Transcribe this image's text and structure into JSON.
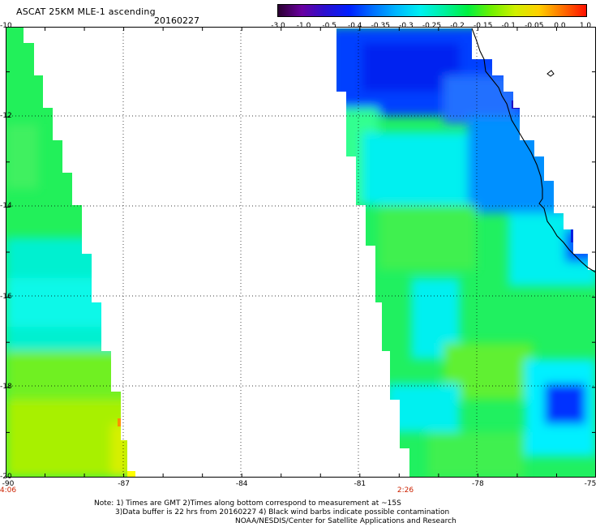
{
  "header": {
    "title": "ASCAT 25KM MLE-1 ascending",
    "date": "20160227"
  },
  "colorbar": {
    "labels": [
      "-3.0",
      "-1.0",
      "-0.5",
      "-0.4",
      "-0.35",
      "-0.3",
      "-0.25",
      "-0.2",
      "-0.15",
      "-0.1",
      "-0.05",
      "0.0",
      "1.0"
    ],
    "colors": [
      "#2a0030",
      "#6a00a0",
      "#2a10d0",
      "#0020ff",
      "#0070ff",
      "#00b8ff",
      "#00f0f0",
      "#00f0a0",
      "#00f040",
      "#70f000",
      "#d0f000",
      "#ffd000",
      "#ff7000",
      "#ff1000"
    ]
  },
  "axes": {
    "lon_labels": [
      "-90",
      "-87",
      "-84",
      "-81",
      "-78",
      "-75"
    ],
    "lat_labels": [
      "-10",
      "-12",
      "-14",
      "-16",
      "-18",
      "-20"
    ],
    "lon_range": [
      -90,
      -75
    ],
    "lat_range": [
      -20,
      -10
    ],
    "grid": "dotted"
  },
  "times": {
    "left_pass": "4:06",
    "right_pass": "2:26"
  },
  "notes": {
    "line1": "Note: 1) Times are GMT 2)Times along bottom correspond to measurement at ~15S",
    "line2": "3)Data buffer is 22 hrs from 20160227 4) Black wind barbs indicate possible contamination",
    "line3": "NOAA/NESDIS/Center for Satellite Applications and Research"
  }
}
